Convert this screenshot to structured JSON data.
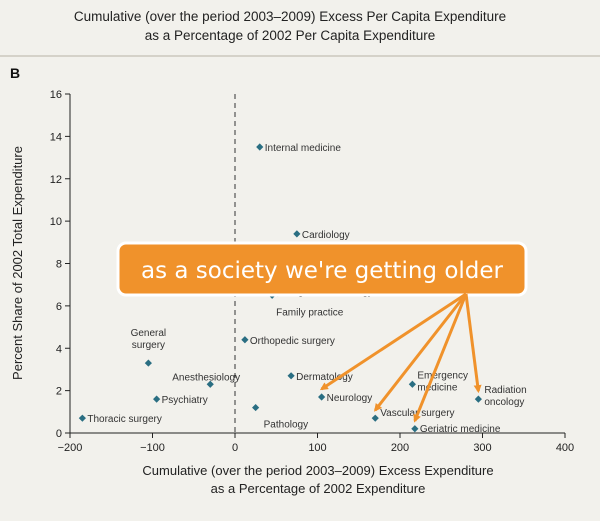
{
  "header": {
    "title_line1": "Cumulative (over the period 2003–2009) Excess Per Capita Expenditure",
    "title_line2": "as a Percentage of 2002 Per Capita Expenditure"
  },
  "panel": {
    "letter": "B"
  },
  "annotation": {
    "text": "as a society we're getting older",
    "color": "#f0922b"
  },
  "chart_data": {
    "type": "scatter",
    "title": "Cumulative (over the period 2003–2009) Excess Per Capita Expenditure as a Percentage of 2002 Per Capita Expenditure",
    "xlabel_lines": [
      "Cumulative (over the period 2003–2009) Excess Expenditure",
      "as a Percentage of 2002 Expenditure"
    ],
    "ylabel": "Percent Share of 2002 Total Expenditure",
    "xlim": [
      -200,
      400
    ],
    "ylim": [
      0,
      16
    ],
    "xticks": [
      "−200",
      "−100",
      "0",
      "100",
      "200",
      "300",
      "400"
    ],
    "yticks": [
      "0",
      "2",
      "4",
      "6",
      "8",
      "10",
      "12",
      "14",
      "16"
    ],
    "reference_line_x": 0,
    "marker_color": "#2a6e82",
    "points": [
      {
        "label": "Internal medicine",
        "x": 30,
        "y": 13.5
      },
      {
        "label": "Cardiology",
        "x": 75,
        "y": 9.4
      },
      {
        "label": "Diagnostic radiology",
        "x": 52,
        "y": 6.6
      },
      {
        "label": "Family practice",
        "x": 45,
        "y": 6.5
      },
      {
        "label": "Orthopedic surgery",
        "x": 12,
        "y": 4.4
      },
      {
        "label": "General surgery",
        "x": -105,
        "y": 3.3
      },
      {
        "label": "Anesthesiology",
        "x": -30,
        "y": 2.3
      },
      {
        "label": "Dermatology",
        "x": 68,
        "y": 2.7
      },
      {
        "label": "Emergency medicine",
        "x": 215,
        "y": 2.3
      },
      {
        "label": "Radiation oncology",
        "x": 295,
        "y": 1.6
      },
      {
        "label": "Psychiatry",
        "x": -95,
        "y": 1.6
      },
      {
        "label": "Neurology",
        "x": 105,
        "y": 1.7
      },
      {
        "label": "Pathology",
        "x": 25,
        "y": 1.2
      },
      {
        "label": "Vascular surgery",
        "x": 170,
        "y": 0.7
      },
      {
        "label": "Thoracic surgery",
        "x": -185,
        "y": 0.7
      },
      {
        "label": "Geriatric medicine",
        "x": 218,
        "y": 0.2
      }
    ]
  }
}
